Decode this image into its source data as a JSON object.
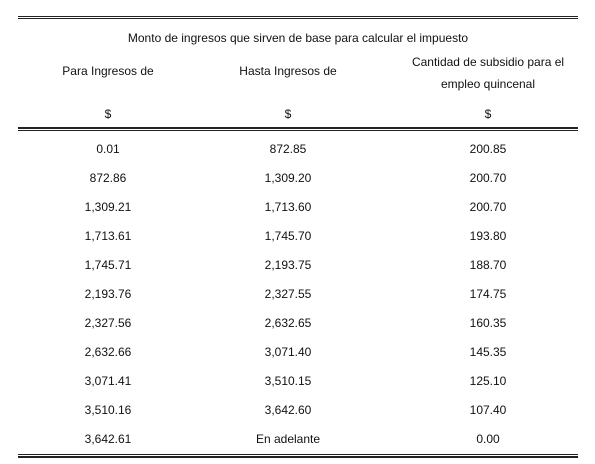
{
  "table": {
    "caption": "Monto de ingresos que sirven de base para calcular el impuesto",
    "headers": {
      "from": "Para Ingresos de",
      "to": "Hasta Ingresos de",
      "subsidy_line1": "Cantidad de subsidio para el",
      "subsidy_line2": "empleo quincenal"
    },
    "currency": {
      "from": "$",
      "to": "$",
      "subsidy": "$"
    },
    "rows": [
      {
        "from": "0.01",
        "to": "872.85",
        "subsidy": "200.85"
      },
      {
        "from": "872.86",
        "to": "1,309.20",
        "subsidy": "200.70"
      },
      {
        "from": "1,309.21",
        "to": "1,713.60",
        "subsidy": "200.70"
      },
      {
        "from": "1,713.61",
        "to": "1,745.70",
        "subsidy": "193.80"
      },
      {
        "from": "1,745.71",
        "to": "2,193.75",
        "subsidy": "188.70"
      },
      {
        "from": "2,193.76",
        "to": "2,327.55",
        "subsidy": "174.75"
      },
      {
        "from": "2,327.56",
        "to": "2,632.65",
        "subsidy": "160.35"
      },
      {
        "from": "2,632.66",
        "to": "3,071.40",
        "subsidy": "145.35"
      },
      {
        "from": "3,071.41",
        "to": "3,510.15",
        "subsidy": "125.10"
      },
      {
        "from": "3,510.16",
        "to": "3,642.60",
        "subsidy": "107.40"
      },
      {
        "from": "3,642.61",
        "to": "En adelante",
        "subsidy": "0.00"
      }
    ]
  }
}
